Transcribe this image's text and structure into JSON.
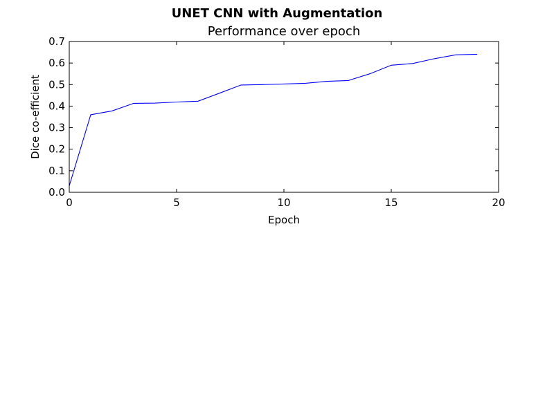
{
  "chart_data": {
    "type": "line",
    "title": "UNET CNN with Augmentation",
    "subtitle": "Performance over epoch",
    "xlabel": "Epoch",
    "ylabel": "Dice co-efficient",
    "xlim": [
      0,
      20
    ],
    "ylim": [
      0.0,
      0.7
    ],
    "x_ticks": [
      "0",
      "5",
      "10",
      "15",
      "20"
    ],
    "y_ticks": [
      "0.0",
      "0.1",
      "0.2",
      "0.3",
      "0.4",
      "0.5",
      "0.6",
      "0.7"
    ],
    "grid": false,
    "series": [
      {
        "color": "#0000ff",
        "x": [
          0,
          1,
          2,
          3,
          4,
          5,
          6,
          7,
          8,
          9,
          10,
          11,
          12,
          13,
          14,
          15,
          16,
          17,
          18,
          19
        ],
        "values": [
          0.03,
          0.36,
          0.378,
          0.413,
          0.414,
          0.419,
          0.423,
          0.46,
          0.498,
          0.5,
          0.503,
          0.506,
          0.515,
          0.519,
          0.55,
          0.59,
          0.598,
          0.62,
          0.638,
          0.641
        ]
      }
    ]
  }
}
